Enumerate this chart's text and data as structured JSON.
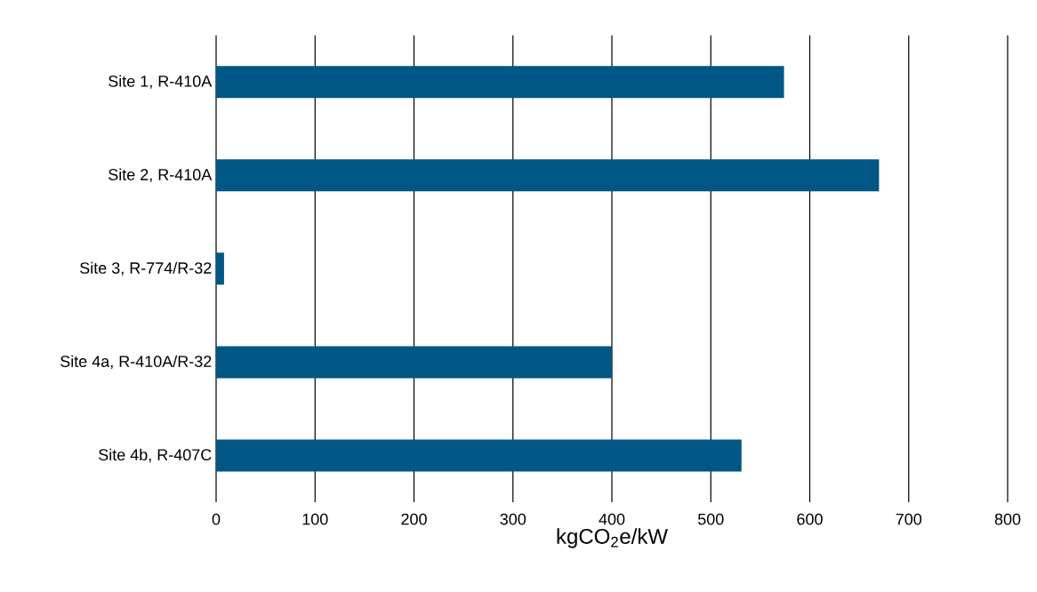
{
  "chart_data": {
    "type": "bar",
    "orientation": "horizontal",
    "categories": [
      "Site 1, R-410A",
      "Site 2, R-410A",
      "Site 3, R-774/R-32",
      "Site 4a, R-410A/R-32",
      "Site 4b, R-407C"
    ],
    "values": [
      574,
      670,
      8,
      400,
      531
    ],
    "color": "#005785",
    "xlabel": "kgCO$_{2}$e/kW",
    "xlim": [
      0,
      800
    ],
    "xticks": [
      0,
      100,
      200,
      300,
      400,
      500,
      600,
      700,
      800
    ],
    "grid": "x"
  }
}
